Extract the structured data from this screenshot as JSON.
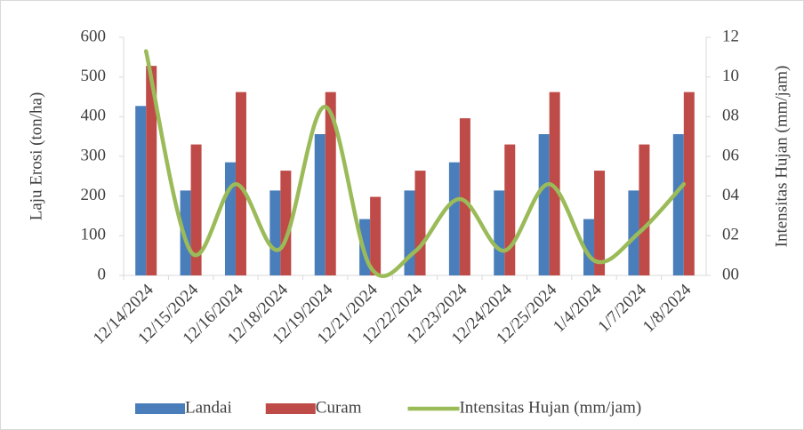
{
  "chart_data": {
    "type": "bar-line",
    "categories": [
      "12/14/2024",
      "12/15/2024",
      "12/16/2024",
      "12/18/2024",
      "12/19/2024",
      "12/21/2024",
      "12/22/2024",
      "12/23/2024",
      "12/24/2024",
      "12/25/2024",
      "1/4/2024",
      "1/7/2024",
      "1/8/2024"
    ],
    "series": [
      {
        "name": "Landai",
        "type": "bar",
        "color": "#4a7ebb",
        "values": [
          427,
          214,
          285,
          214,
          356,
          142,
          214,
          285,
          214,
          356,
          142,
          214,
          356
        ]
      },
      {
        "name": "Curam",
        "type": "bar",
        "color": "#be4b48",
        "values": [
          528,
          330,
          462,
          264,
          462,
          198,
          264,
          396,
          330,
          462,
          264,
          330,
          462
        ]
      },
      {
        "name": "Intensitas Hujan (mm/jam)",
        "type": "line",
        "axis": "y2",
        "color": "#9bbb59",
        "values": [
          11.3,
          1.2,
          4.6,
          1.35,
          8.5,
          0.45,
          1.2,
          3.85,
          1.25,
          4.6,
          0.75,
          2.15,
          4.6
        ]
      }
    ],
    "ylabel": "Laju Erosi (ton/ha)",
    "y2label": "Intensitas Hujan (mm/jam)",
    "ylim": [
      0,
      600
    ],
    "yticks": [
      0,
      100,
      200,
      300,
      400,
      500,
      600
    ],
    "y2lim": [
      0,
      12
    ],
    "y2ticks": [
      {
        "value": 0,
        "label": "00"
      },
      {
        "value": 2,
        "label": "02"
      },
      {
        "value": 4,
        "label": "04"
      },
      {
        "value": 6,
        "label": "06"
      },
      {
        "value": 8,
        "label": "08"
      },
      10,
      12
    ],
    "legend": "bottom"
  }
}
